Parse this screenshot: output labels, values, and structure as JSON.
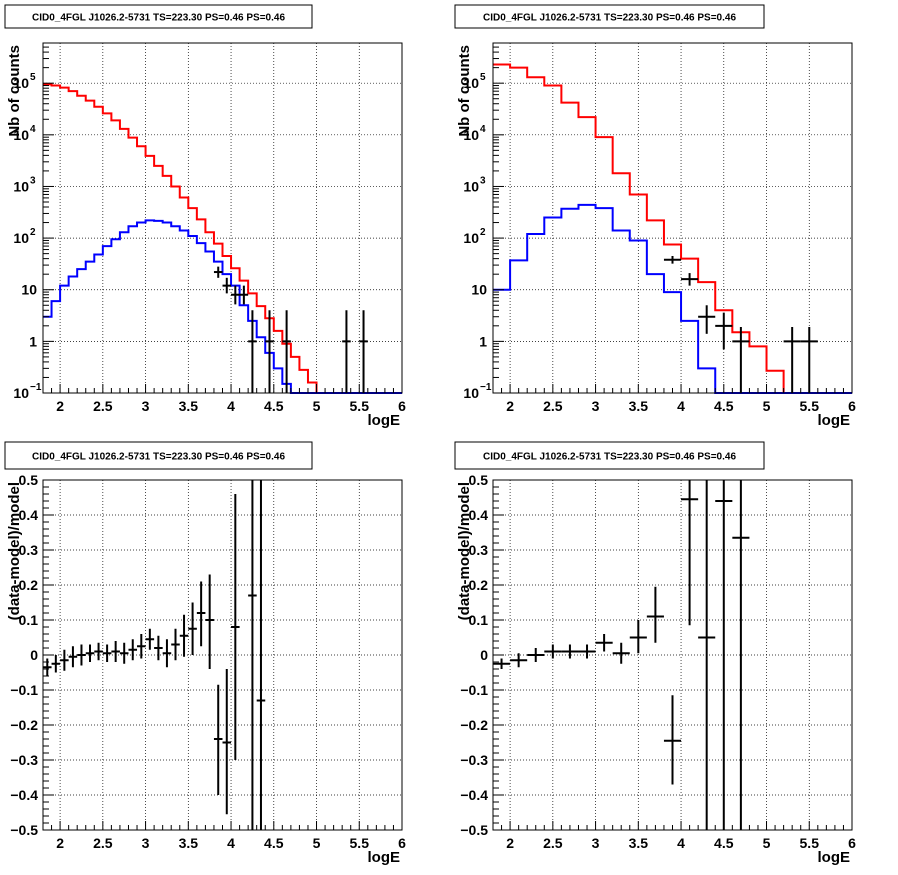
{
  "chart_data": [
    {
      "type": "histogram",
      "title": "CID0_4FGL J1026.2-5731 TS=223.30 PS=0.46 PS=0.46",
      "xlabel": "logE",
      "ylabel": "Nb of counts",
      "xlim": [
        1.8,
        6.0
      ],
      "ylim": [
        0.1,
        600000
      ],
      "yscale": "log",
      "grid": true,
      "x_ticks": [
        "2",
        "2.5",
        "3",
        "3.5",
        "4",
        "4.5",
        "5",
        "5.5",
        "6"
      ],
      "y_ticks": [
        {
          "v": 0.1,
          "label": "10",
          "exp": "−1"
        },
        {
          "v": 1,
          "label": "1",
          "exp": ""
        },
        {
          "v": 10,
          "label": "10",
          "exp": ""
        },
        {
          "v": 100,
          "label": "10",
          "exp": "2"
        },
        {
          "v": 1000,
          "label": "10",
          "exp": "3"
        },
        {
          "v": 10000,
          "label": "10",
          "exp": "4"
        },
        {
          "v": 100000,
          "label": "10",
          "exp": "5"
        }
      ],
      "bin_edges": [
        1.8,
        1.9,
        2.0,
        2.1,
        2.2,
        2.3,
        2.4,
        2.5,
        2.6,
        2.7,
        2.8,
        2.9,
        3.0,
        3.1,
        3.2,
        3.3,
        3.4,
        3.5,
        3.6,
        3.7,
        3.8,
        3.9,
        4.0,
        4.1,
        4.2,
        4.3,
        4.4,
        4.5,
        4.6,
        4.7,
        4.8,
        4.9,
        5.0,
        5.1,
        5.2,
        5.3,
        5.4,
        5.5,
        5.6,
        5.7,
        5.8,
        5.9,
        6.0
      ],
      "series": [
        {
          "color": "#ff0000",
          "values": [
            95000,
            90000,
            82000,
            70000,
            57000,
            46000,
            35000,
            26000,
            19000,
            13000,
            8800,
            6000,
            3900,
            2500,
            1600,
            1000,
            610,
            380,
            230,
            130,
            78,
            45,
            26,
            15,
            8.5,
            4.8,
            2.8,
            1.6,
            0.9,
            0.5,
            0.28,
            0.16,
            0.1,
            0.1,
            0.1,
            0.1,
            0.1,
            0.1,
            0.1,
            0.1,
            0.1,
            0.1
          ]
        },
        {
          "color": "#0000ff",
          "values": [
            3,
            6,
            12,
            18,
            25,
            35,
            48,
            70,
            95,
            130,
            170,
            200,
            220,
            215,
            200,
            170,
            140,
            110,
            80,
            55,
            35,
            20,
            12,
            5,
            2.5,
            1.2,
            0.6,
            0.3,
            0.15,
            0.1,
            0.1,
            0.1,
            0.1,
            0.1,
            0.1,
            0.1,
            0.1,
            0.1,
            0.1,
            0.1,
            0.1,
            0.1
          ]
        }
      ],
      "points": [
        {
          "x": 3.85,
          "y": 22,
          "lo": 17,
          "hi": 28
        },
        {
          "x": 3.95,
          "y": 12,
          "lo": 8.5,
          "hi": 17
        },
        {
          "x": 4.05,
          "y": 8,
          "lo": 5.2,
          "hi": 12
        },
        {
          "x": 4.15,
          "y": 8,
          "lo": 5.2,
          "hi": 12
        },
        {
          "x": 4.25,
          "y": 1,
          "lo": 0.1,
          "hi": 4
        },
        {
          "x": 4.45,
          "y": 1,
          "lo": 0.1,
          "hi": 4
        },
        {
          "x": 4.65,
          "y": 1,
          "lo": 0.1,
          "hi": 4
        },
        {
          "x": 5.35,
          "y": 1,
          "lo": 0.1,
          "hi": 4
        },
        {
          "x": 5.55,
          "y": 1,
          "lo": 0.1,
          "hi": 4
        }
      ]
    },
    {
      "type": "histogram",
      "title": "CID0_4FGL J1026.2-5731 TS=223.30 PS=0.46 PS=0.46",
      "xlabel": "logE",
      "ylabel": "Nb of counts",
      "xlim": [
        1.8,
        6.0
      ],
      "ylim": [
        0.1,
        600000
      ],
      "yscale": "log",
      "grid": true,
      "x_ticks": [
        "2",
        "2.5",
        "3",
        "3.5",
        "4",
        "4.5",
        "5",
        "5.5",
        "6"
      ],
      "y_ticks": [
        {
          "v": 0.1,
          "label": "10",
          "exp": "−1"
        },
        {
          "v": 1,
          "label": "1",
          "exp": ""
        },
        {
          "v": 10,
          "label": "10",
          "exp": ""
        },
        {
          "v": 100,
          "label": "10",
          "exp": "2"
        },
        {
          "v": 1000,
          "label": "10",
          "exp": "3"
        },
        {
          "v": 10000,
          "label": "10",
          "exp": "4"
        },
        {
          "v": 100000,
          "label": "10",
          "exp": "5"
        }
      ],
      "bin_edges": [
        1.8,
        2.0,
        2.2,
        2.4,
        2.6,
        2.8,
        3.0,
        3.2,
        3.4,
        3.6,
        3.8,
        4.0,
        4.2,
        4.4,
        4.6,
        4.8,
        5.0,
        5.2,
        5.4,
        5.6,
        5.8,
        6.0
      ],
      "series": [
        {
          "color": "#ff0000",
          "values": [
            230000,
            200000,
            130000,
            90000,
            42000,
            22000,
            9000,
            1800,
            700,
            220,
            75,
            40,
            14,
            4,
            1.5,
            0.8,
            0.27,
            0.1,
            0.1,
            0.1,
            0.1
          ]
        },
        {
          "color": "#0000ff",
          "values": [
            10,
            37,
            120,
            250,
            370,
            440,
            380,
            140,
            90,
            20,
            9,
            2.5,
            0.3,
            0.1,
            0.1,
            0.1,
            0.1,
            0.1,
            0.1,
            0.1,
            0.1
          ]
        }
      ],
      "points": [
        {
          "x": 3.9,
          "y": 38,
          "lo": 32,
          "hi": 45
        },
        {
          "x": 4.1,
          "y": 16,
          "lo": 12,
          "hi": 21
        },
        {
          "x": 4.3,
          "y": 3,
          "lo": 1.4,
          "hi": 5
        },
        {
          "x": 4.5,
          "y": 2,
          "lo": 0.7,
          "hi": 3.6
        },
        {
          "x": 4.7,
          "y": 1,
          "lo": 0.1,
          "hi": 1.9
        },
        {
          "x": 5.3,
          "y": 1,
          "lo": 0.1,
          "hi": 1.9
        },
        {
          "x": 5.5,
          "y": 1,
          "lo": 0.1,
          "hi": 1.9
        }
      ]
    },
    {
      "type": "scatter",
      "title": "CID0_4FGL J1026.2-5731 TS=223.30 PS=0.46 PS=0.46",
      "xlabel": "logE",
      "ylabel": "(data-model)/model",
      "xlim": [
        1.8,
        6.0
      ],
      "ylim": [
        -0.5,
        0.5
      ],
      "grid": true,
      "x_ticks": [
        "2",
        "2.5",
        "3",
        "3.5",
        "4",
        "4.5",
        "5",
        "5.5",
        "6"
      ],
      "y_ticks": [
        "−0.5",
        "−0.4",
        "−0.3",
        "−0.2",
        "−0.1",
        "0",
        "0.1",
        "0.2",
        "0.3",
        "0.4",
        "0.5"
      ],
      "xerr": 0.05,
      "points": [
        {
          "x": 1.85,
          "y": -0.035,
          "lo": -0.06,
          "hi": -0.01
        },
        {
          "x": 1.95,
          "y": -0.025,
          "lo": -0.05,
          "hi": 0.0
        },
        {
          "x": 2.05,
          "y": -0.015,
          "lo": -0.045,
          "hi": 0.015
        },
        {
          "x": 2.15,
          "y": -0.005,
          "lo": -0.035,
          "hi": 0.025
        },
        {
          "x": 2.25,
          "y": 0.0,
          "lo": -0.03,
          "hi": 0.03
        },
        {
          "x": 2.35,
          "y": 0.005,
          "lo": -0.02,
          "hi": 0.03
        },
        {
          "x": 2.45,
          "y": 0.01,
          "lo": -0.015,
          "hi": 0.035
        },
        {
          "x": 2.55,
          "y": 0.005,
          "lo": -0.02,
          "hi": 0.03
        },
        {
          "x": 2.65,
          "y": 0.01,
          "lo": -0.02,
          "hi": 0.04
        },
        {
          "x": 2.75,
          "y": 0.005,
          "lo": -0.025,
          "hi": 0.035
        },
        {
          "x": 2.85,
          "y": 0.015,
          "lo": -0.015,
          "hi": 0.045
        },
        {
          "x": 2.95,
          "y": 0.025,
          "lo": -0.01,
          "hi": 0.06
        },
        {
          "x": 3.05,
          "y": 0.045,
          "lo": 0.015,
          "hi": 0.075
        },
        {
          "x": 3.15,
          "y": 0.02,
          "lo": -0.015,
          "hi": 0.055
        },
        {
          "x": 3.25,
          "y": 0.005,
          "lo": -0.035,
          "hi": 0.045
        },
        {
          "x": 3.35,
          "y": 0.03,
          "lo": -0.015,
          "hi": 0.075
        },
        {
          "x": 3.45,
          "y": 0.055,
          "lo": -0.005,
          "hi": 0.115
        },
        {
          "x": 3.55,
          "y": 0.075,
          "lo": 0.0,
          "hi": 0.15
        },
        {
          "x": 3.65,
          "y": 0.12,
          "lo": 0.025,
          "hi": 0.21
        },
        {
          "x": 3.75,
          "y": 0.1,
          "lo": -0.04,
          "hi": 0.23
        },
        {
          "x": 3.85,
          "y": -0.24,
          "lo": -0.4,
          "hi": -0.085
        },
        {
          "x": 3.95,
          "y": -0.25,
          "lo": -0.455,
          "hi": -0.04
        },
        {
          "x": 4.05,
          "y": 0.08,
          "lo": -0.3,
          "hi": 0.46
        },
        {
          "x": 4.25,
          "y": 0.17,
          "lo": -0.5,
          "hi": 0.5
        },
        {
          "x": 4.35,
          "y": -0.13,
          "lo": -0.5,
          "hi": 0.5
        }
      ]
    },
    {
      "type": "scatter",
      "title": "CID0_4FGL J1026.2-5731 TS=223.30 PS=0.46 PS=0.46",
      "xlabel": "logE",
      "ylabel": "(data-model)/model",
      "xlim": [
        1.8,
        6.0
      ],
      "ylim": [
        -0.5,
        0.5
      ],
      "grid": true,
      "x_ticks": [
        "2",
        "2.5",
        "3",
        "3.5",
        "4",
        "4.5",
        "5",
        "5.5",
        "6"
      ],
      "y_ticks": [
        "−0.5",
        "−0.4",
        "−0.3",
        "−0.2",
        "−0.1",
        "0",
        "0.1",
        "0.2",
        "0.3",
        "0.4",
        "0.5"
      ],
      "xerr": 0.1,
      "points": [
        {
          "x": 1.9,
          "y": -0.025,
          "lo": -0.04,
          "hi": -0.01
        },
        {
          "x": 2.1,
          "y": -0.015,
          "lo": -0.035,
          "hi": 0.005
        },
        {
          "x": 2.3,
          "y": 0.0,
          "lo": -0.02,
          "hi": 0.02
        },
        {
          "x": 2.5,
          "y": 0.01,
          "lo": -0.01,
          "hi": 0.03
        },
        {
          "x": 2.7,
          "y": 0.01,
          "lo": -0.01,
          "hi": 0.03
        },
        {
          "x": 2.9,
          "y": 0.01,
          "lo": -0.01,
          "hi": 0.03
        },
        {
          "x": 3.1,
          "y": 0.035,
          "lo": 0.01,
          "hi": 0.06
        },
        {
          "x": 3.3,
          "y": 0.005,
          "lo": -0.025,
          "hi": 0.035
        },
        {
          "x": 3.5,
          "y": 0.05,
          "lo": 0.005,
          "hi": 0.1
        },
        {
          "x": 3.7,
          "y": 0.11,
          "lo": 0.035,
          "hi": 0.195
        },
        {
          "x": 3.9,
          "y": -0.245,
          "lo": -0.37,
          "hi": -0.115
        },
        {
          "x": 4.1,
          "y": 0.445,
          "lo": 0.085,
          "hi": 0.5
        },
        {
          "x": 4.3,
          "y": 0.05,
          "lo": -0.5,
          "hi": 0.5
        },
        {
          "x": 4.5,
          "y": 0.44,
          "lo": -0.5,
          "hi": 0.5
        },
        {
          "x": 4.7,
          "y": 0.335,
          "lo": -0.5,
          "hi": 0.5
        }
      ]
    }
  ]
}
